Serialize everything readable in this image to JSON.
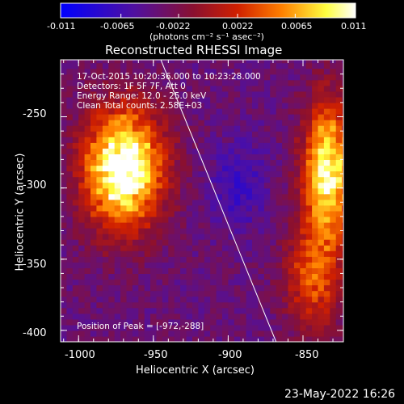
{
  "colorbar": {
    "ticks": [
      "-0.011",
      "-0.0065",
      "-0.0022",
      "0.0022",
      "0.0065",
      "0.011"
    ],
    "unit_label": "(photons cm⁻² s⁻¹ asec⁻²)",
    "range": [
      -0.011,
      0.011
    ],
    "colors": [
      "#0000ff",
      "#5010a0",
      "#8a1030",
      "#d02000",
      "#ff8000",
      "#ffff40",
      "#ffffff"
    ]
  },
  "chart_data": {
    "type": "heatmap",
    "title": "Reconstructed RHESSI Image",
    "xlabel": "Heliocentric X (arcsec)",
    "ylabel": "Heliocentric Y (arcsec)",
    "xlim": [
      -1012,
      -823
    ],
    "ylim": [
      -408,
      -210
    ],
    "xticks": [
      "-1000",
      "-950",
      "-900",
      "-850"
    ],
    "yticks": [
      "-250",
      "-300",
      "-350",
      "-400"
    ],
    "xtick_values": [
      -1000,
      -950,
      -900,
      -850
    ],
    "ytick_values": [
      -250,
      -300,
      -350,
      -400
    ],
    "limb_line": [
      [
        -945,
        -210
      ],
      [
        -868,
        -408
      ]
    ],
    "sources": [
      {
        "x": -972,
        "y": -288,
        "sx": 22,
        "sy": 35,
        "amp": 1.0
      },
      {
        "x": -835,
        "y": -290,
        "sx": 14,
        "sy": 40,
        "amp": 0.85
      },
      {
        "x": -845,
        "y": -365,
        "sx": 16,
        "sy": 30,
        "amp": 0.45
      }
    ],
    "peak_position": "[-972,-288]",
    "annotations": {
      "time_range": "17-Oct-2015 10:20:36.000 to 10:23:28.000",
      "detectors": "Detectors: 1F 5F 7F, Att 0",
      "energy": "Energy Range: 12.0 - 25.0 keV",
      "clean": "Clean     Total counts: 2.58E+03",
      "peak": "Position of Peak = [-972,-288]"
    }
  },
  "footer": {
    "date": "23-May-2022 16:26"
  }
}
